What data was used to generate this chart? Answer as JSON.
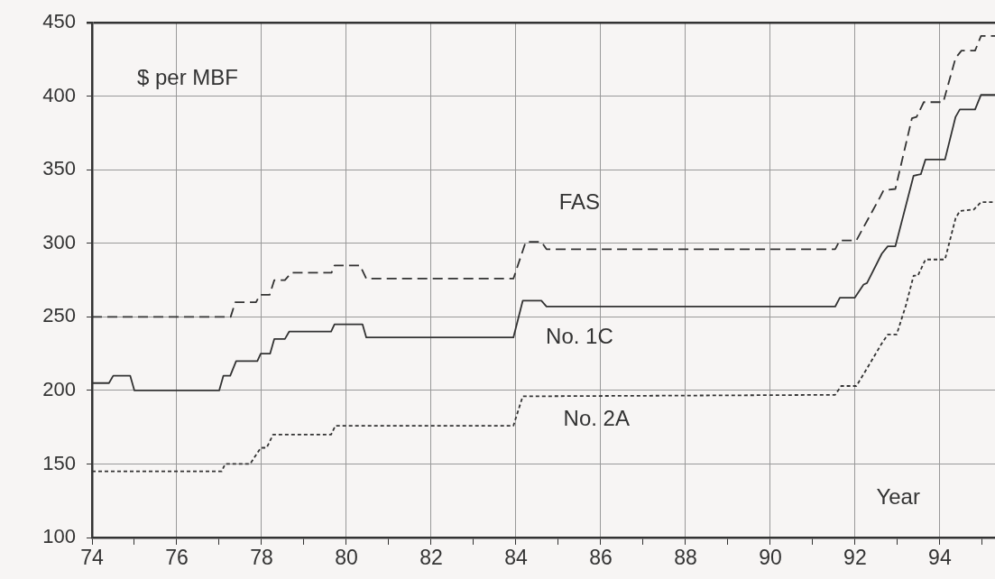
{
  "chart_data": {
    "type": "line",
    "ylabel": "$ per MBF",
    "xlabel": "Year",
    "xlim": [
      74,
      95.3
    ],
    "ylim": [
      100,
      450
    ],
    "xticks": [
      74,
      {
        "value": 75,
        "label": null
      },
      76,
      {
        "value": 77,
        "label": null
      },
      78,
      {
        "value": 79,
        "label": null
      },
      80,
      {
        "value": 81,
        "label": null
      },
      82,
      {
        "value": 83,
        "label": null
      },
      84,
      {
        "value": 85,
        "label": null
      },
      86,
      {
        "value": 87,
        "label": null
      },
      88,
      {
        "value": 89,
        "label": null
      },
      90,
      {
        "value": 91,
        "label": null
      },
      92,
      {
        "value": 93,
        "label": null
      },
      94,
      {
        "value": 95,
        "label": null
      }
    ],
    "yticks": [
      100,
      150,
      200,
      250,
      300,
      350,
      400,
      450
    ],
    "grid": true,
    "legend": false,
    "marker": "none",
    "series": [
      {
        "name": "FAS",
        "color": "#333333",
        "line_style": "dashed",
        "x": [
          74,
          77.27,
          77.38,
          77.87,
          77.96,
          78.19,
          78.3,
          78.55,
          78.7,
          79.65,
          79.72,
          80.32,
          80.47,
          83.94,
          84.23,
          84.6,
          84.72,
          91.53,
          91.64,
          92.03,
          92.6,
          92.67,
          92.95,
          93.34,
          93.45,
          93.62,
          94.08,
          94.37,
          94.51,
          94.83,
          94.97,
          95.3
        ],
        "values": [
          250,
          250,
          260,
          260,
          265,
          265,
          275,
          275,
          280,
          280,
          285,
          285,
          276,
          276,
          301,
          301,
          296,
          296,
          302,
          302,
          332,
          336,
          337,
          385,
          386,
          396,
          396,
          426,
          431,
          431,
          441,
          441
        ]
      },
      {
        "name": "No. 1C",
        "color": "#333333",
        "line_style": "solid",
        "x": [
          74,
          74.4,
          74.5,
          74.9,
          75.0,
          77.0,
          77.1,
          77.26,
          77.4,
          77.9,
          77.98,
          78.2,
          78.3,
          78.55,
          78.65,
          79.64,
          79.72,
          80.38,
          80.47,
          83.94,
          84.16,
          84.6,
          84.72,
          91.53,
          91.64,
          91.99,
          92.2,
          92.28,
          92.63,
          92.77,
          92.95,
          93.38,
          93.55,
          93.66,
          94.12,
          94.37,
          94.47,
          94.83,
          94.97,
          95.3
        ],
        "values": [
          205,
          205,
          210,
          210,
          200,
          200,
          210,
          210,
          220,
          220,
          225,
          225,
          235,
          235,
          240,
          240,
          245,
          245,
          236,
          236,
          261,
          261,
          257,
          257,
          263,
          263,
          272,
          273,
          293,
          298,
          298,
          346,
          347,
          357,
          357,
          386,
          391,
          391,
          401,
          401
        ]
      },
      {
        "name": "No. 2A",
        "color": "#333333",
        "line_style": "dotted",
        "x": [
          74,
          77.06,
          77.14,
          77.73,
          77.98,
          78.12,
          78.27,
          79.64,
          79.74,
          83.94,
          84.16,
          91.53,
          91.67,
          92.03,
          92.24,
          92.63,
          92.77,
          92.98,
          93.2,
          93.38,
          93.48,
          93.66,
          94.12,
          94.37,
          94.47,
          94.8,
          94.97,
          95.3
        ],
        "values": [
          145,
          145,
          150,
          150,
          161,
          161,
          170,
          170,
          176,
          176,
          196,
          197,
          203,
          203,
          213,
          232,
          238,
          238,
          258,
          278,
          278,
          289,
          289,
          317,
          322,
          323,
          328,
          328
        ]
      }
    ]
  }
}
